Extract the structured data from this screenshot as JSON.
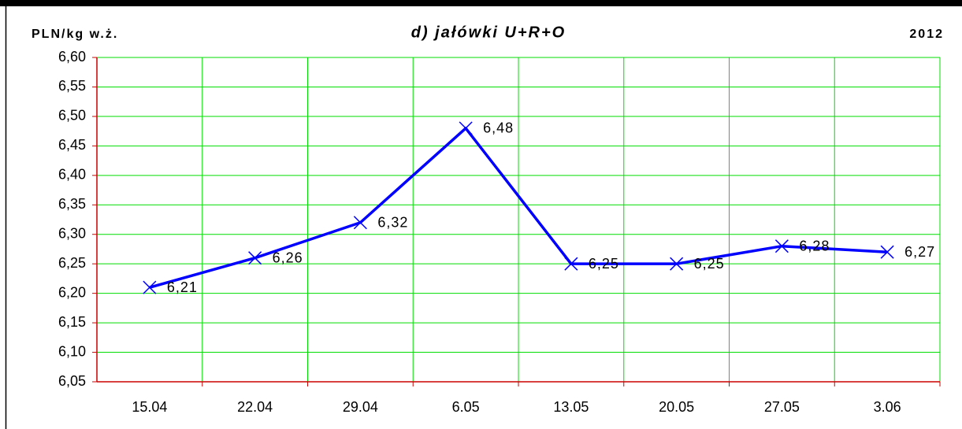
{
  "chart_data": {
    "type": "line",
    "ylabel": "PLN/kg w.ż.",
    "title": "d) jałówki U+R+O",
    "subtitle": "2012",
    "categories": [
      "15.04",
      "22.04",
      "29.04",
      "6.05",
      "13.05",
      "20.05",
      "27.05",
      "3.06"
    ],
    "series": [
      {
        "color": "#0000ff",
        "values": [
          6.21,
          6.26,
          6.32,
          6.48,
          6.25,
          6.25,
          6.28,
          6.27
        ],
        "value_labels": [
          "6,21",
          "6,26",
          "6,32",
          "6,48",
          "6,25",
          "6,25",
          "6,28",
          "6,27"
        ]
      }
    ],
    "ylim": [
      6.05,
      6.6
    ],
    "yticks": [
      {
        "value": 6.05,
        "label": "6,05"
      },
      {
        "value": 6.1,
        "label": "6,10"
      },
      {
        "value": 6.15,
        "label": "6,15"
      },
      {
        "value": 6.2,
        "label": "6,20"
      },
      {
        "value": 6.25,
        "label": "6,25"
      },
      {
        "value": 6.3,
        "label": "6,30"
      },
      {
        "value": 6.35,
        "label": "6,35"
      },
      {
        "value": 6.4,
        "label": "6,40"
      },
      {
        "value": 6.45,
        "label": "6,45"
      },
      {
        "value": 6.5,
        "label": "6,50"
      },
      {
        "value": 6.55,
        "label": "6,55"
      },
      {
        "value": 6.6,
        "label": "6,60"
      }
    ],
    "grid": true
  }
}
